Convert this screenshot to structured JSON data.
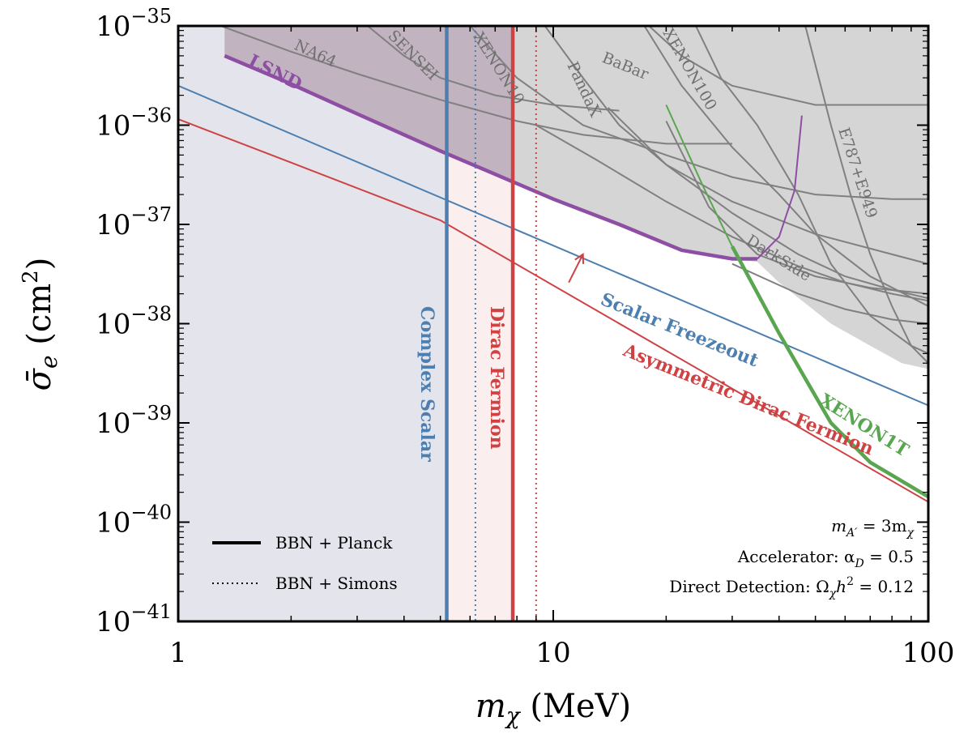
{
  "chart_data": {
    "type": "line",
    "title": "",
    "xlabel_var": "m",
    "xlabel_sub": "χ",
    "xlabel_unit": "(MeV)",
    "ylabel_var": "σ̄",
    "ylabel_sub": "e",
    "ylabel_unit_open": "(cm",
    "ylabel_unit_sup": "2",
    "ylabel_unit_close": ")",
    "x_scale": "log",
    "y_scale": "log",
    "xlim": [
      1,
      100
    ],
    "ylim": [
      1e-41,
      1e-35
    ],
    "x_ticks": [
      {
        "value": 1,
        "label": "1"
      },
      {
        "value": 10,
        "label": "10"
      },
      {
        "value": 100,
        "label": "100"
      }
    ],
    "y_ticks": [
      {
        "value": 1e-35,
        "base": "10",
        "exp": "−35"
      },
      {
        "value": 1e-36,
        "base": "10",
        "exp": "−36"
      },
      {
        "value": 1e-37,
        "base": "10",
        "exp": "−37"
      },
      {
        "value": 1e-38,
        "base": "10",
        "exp": "−38"
      },
      {
        "value": 1e-39,
        "base": "10",
        "exp": "−39"
      },
      {
        "value": 1e-40,
        "base": "10",
        "exp": "−40"
      },
      {
        "value": 1e-41,
        "base": "10",
        "exp": "−41"
      }
    ],
    "excluded_regions": [
      {
        "name": "BBN excluded (Complex Scalar)",
        "x_range": [
          1,
          5.2
        ],
        "color": "#e4e4ec"
      },
      {
        "name": "BBN excluded (Dirac Fermion)",
        "x_range": [
          5.2,
          7.8
        ],
        "color": "#faeeee"
      }
    ],
    "experiments": [
      {
        "label": "NA64",
        "points": [
          [
            1.3,
            1e-35
          ],
          [
            2,
            5.5e-36
          ],
          [
            3,
            3.3e-36
          ],
          [
            5,
            1.8e-36
          ],
          [
            8,
            1.1e-36
          ],
          [
            12,
            8e-37
          ],
          [
            20,
            6.5e-37
          ],
          [
            30,
            6.5e-37
          ]
        ]
      },
      {
        "label": "SENSEI",
        "points": [
          [
            3.2,
            1e-35
          ],
          [
            4,
            5e-36
          ],
          [
            5,
            3e-36
          ],
          [
            7,
            2e-36
          ],
          [
            10,
            1.6e-36
          ],
          [
            15,
            1.4e-36
          ]
        ]
      },
      {
        "label": "XENON10",
        "points": [
          [
            6,
            1e-35
          ],
          [
            8,
            3e-36
          ],
          [
            12,
            1e-36
          ],
          [
            20,
            5e-37
          ],
          [
            30,
            3e-37
          ],
          [
            50,
            2e-37
          ],
          [
            80,
            1.8e-37
          ],
          [
            100,
            1.8e-37
          ]
        ]
      },
      {
        "label": "PandaX",
        "points": [
          [
            9.5,
            1e-35
          ],
          [
            12,
            3e-36
          ],
          [
            15,
            1e-36
          ],
          [
            20,
            4e-37
          ],
          [
            30,
            1.7e-37
          ],
          [
            50,
            8e-38
          ],
          [
            80,
            5e-38
          ],
          [
            100,
            4e-38
          ]
        ]
      },
      {
        "label": "BaBar",
        "points": [
          [
            18,
            1e-35
          ],
          [
            22,
            5e-36
          ],
          [
            30,
            2.5e-36
          ],
          [
            50,
            1.6e-36
          ],
          [
            100,
            1.6e-36
          ]
        ]
      },
      {
        "label": "XENON100",
        "points": [
          [
            17.5,
            1e-35
          ],
          [
            22,
            2.5e-36
          ],
          [
            30,
            6e-37
          ],
          [
            40,
            2e-37
          ],
          [
            50,
            8e-38
          ],
          [
            70,
            3e-38
          ],
          [
            100,
            1.5e-38
          ]
        ]
      },
      {
        "label": "DarkSide",
        "points": [
          [
            24,
            1e-35
          ],
          [
            28,
            3e-36
          ],
          [
            35,
            1e-36
          ],
          [
            45,
            2e-37
          ],
          [
            55,
            4e-38
          ],
          [
            70,
            1.2e-38
          ],
          [
            90,
            6e-39
          ],
          [
            100,
            5e-39
          ]
        ]
      },
      {
        "label": "E787+E949",
        "points": [
          [
            47,
            1e-35
          ],
          [
            55,
            1e-36
          ],
          [
            62,
            2e-37
          ],
          [
            70,
            5e-38
          ],
          [
            80,
            1.5e-38
          ],
          [
            90,
            6e-39
          ],
          [
            100,
            4e-39
          ]
        ]
      },
      {
        "label": "",
        "points": [
          [
            20,
            1.1e-36
          ],
          [
            26,
            1.5e-37
          ],
          [
            35,
            5e-38
          ],
          [
            50,
            3e-38
          ],
          [
            70,
            2.3e-38
          ],
          [
            100,
            2e-38
          ]
        ]
      },
      {
        "label": "",
        "points": [
          [
            14,
            1.5e-36
          ],
          [
            20,
            4e-37
          ],
          [
            30,
            1.3e-37
          ],
          [
            45,
            5e-38
          ],
          [
            60,
            3e-38
          ],
          [
            80,
            2.2e-38
          ],
          [
            100,
            1.8e-38
          ]
        ]
      },
      {
        "label": "",
        "points": [
          [
            9,
            1e-36
          ],
          [
            13,
            4.5e-37
          ],
          [
            20,
            1.7e-37
          ],
          [
            30,
            7.5e-38
          ],
          [
            45,
            3.8e-38
          ],
          [
            60,
            2.6e-38
          ],
          [
            80,
            2e-38
          ],
          [
            100,
            1.7e-38
          ]
        ]
      },
      {
        "label": "",
        "points": [
          [
            30,
            4e-38
          ],
          [
            45,
            2e-38
          ],
          [
            60,
            1.4e-38
          ],
          [
            80,
            1.1e-38
          ],
          [
            100,
            1e-38
          ]
        ]
      }
    ],
    "models": [
      {
        "label": "LSND",
        "color": "#8e4ea3",
        "points": [
          [
            1.33,
            5e-36
          ],
          [
            2,
            2.6e-36
          ],
          [
            3,
            1.3e-36
          ],
          [
            5,
            5.5e-37
          ],
          [
            7,
            3.2e-37
          ],
          [
            10,
            1.8e-37
          ],
          [
            15,
            1e-37
          ],
          [
            22,
            5.5e-38
          ],
          [
            30,
            4.5e-38
          ],
          [
            35,
            4.5e-38
          ],
          [
            40,
            7.5e-38
          ],
          [
            44,
            2.2e-37
          ],
          [
            46,
            1.25e-36
          ]
        ]
      },
      {
        "label": "Scalar Freezeout",
        "color": "#4c7fb0",
        "points": [
          [
            1,
            2.5e-36
          ],
          [
            100,
            1.5e-39
          ]
        ]
      },
      {
        "label": "Asymmetric Dirac Fermion",
        "color": "#cf4244",
        "points": [
          [
            1,
            1.15e-36
          ],
          [
            2,
            4.2e-37
          ],
          [
            5,
            1.1e-37
          ],
          [
            100,
            1.6e-40
          ]
        ]
      },
      {
        "label": "XENON1T",
        "color": "#5aa550",
        "points": [
          [
            20,
            1.6e-36
          ],
          [
            25,
            2.5e-37
          ],
          [
            30,
            6e-38
          ],
          [
            40,
            8e-39
          ],
          [
            55,
            1e-39
          ],
          [
            70,
            4e-40
          ],
          [
            100,
            1.8e-40
          ]
        ]
      }
    ],
    "bbn_lines": [
      {
        "label": "Complex Scalar",
        "x": 5.2,
        "style": "solid",
        "color": "#4c7fb0"
      },
      {
        "label": "",
        "x": 6.2,
        "style": "dotted",
        "color": "#4c7fb0"
      },
      {
        "label": "Dirac Fermion",
        "x": 7.8,
        "style": "solid",
        "color": "#cf4244"
      },
      {
        "label": "",
        "x": 9.0,
        "style": "dotted",
        "color": "#cf4244"
      }
    ],
    "arrow": {
      "from": [
        11,
        2.6e-38
      ],
      "to": [
        12,
        5e-38
      ],
      "color": "#cf4244"
    },
    "legend": {
      "placement": "lower-left",
      "entries": [
        {
          "label": "BBN + Planck",
          "style": "solid"
        },
        {
          "label": "BBN + Simons",
          "style": "dotted"
        }
      ]
    },
    "annotations": [
      {
        "var": "m",
        "sub": "A′",
        "rest": " = 3m",
        "sub2": "χ"
      },
      {
        "prefix": "Accelerator: α",
        "sub": "D",
        "rest": " = 0.5"
      },
      {
        "prefix": "Direct Detection: Ω",
        "sub": "χ",
        "rest": "h",
        "sup": "2",
        "tail": " = 0.12"
      }
    ],
    "colors": {
      "exp_line": "#808080",
      "exp_fill": "#d5d5d5",
      "lsnd": "#8e4ea3",
      "lsnd_fill": "#b9a8b8",
      "scalar": "#4c7fb0",
      "fermion": "#cf4244",
      "xenon1t": "#5aa550"
    }
  }
}
